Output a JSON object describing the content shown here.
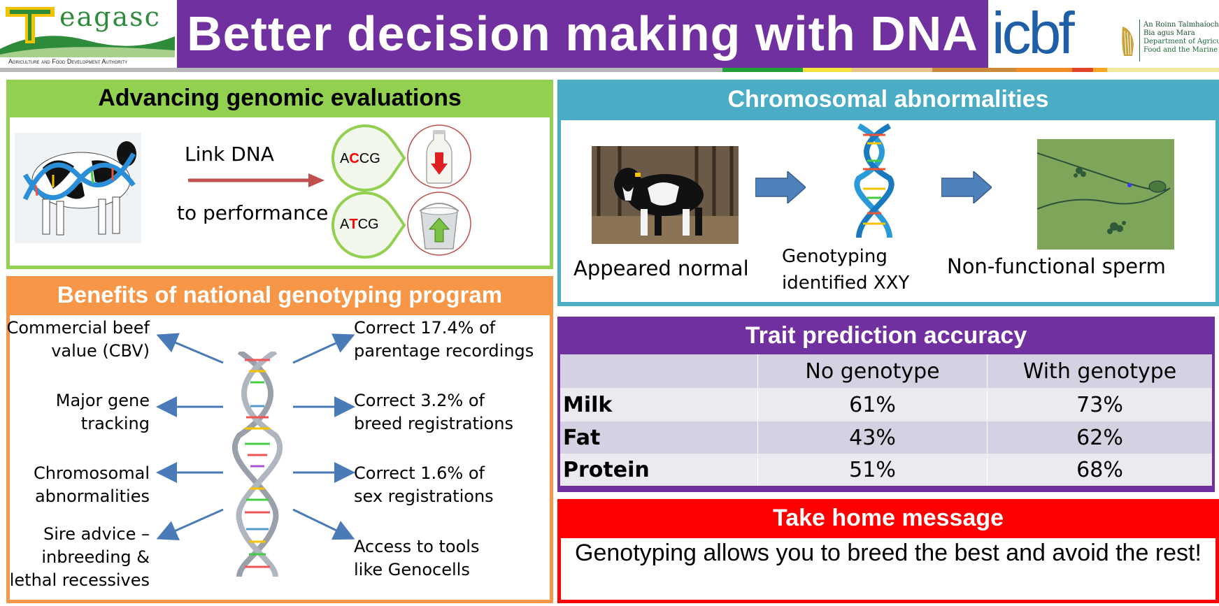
{
  "header": {
    "teagasc_logo": "eagasc",
    "teagasc_tagline": "Agriculture and Food Development Authority",
    "title": "Better decision making with DNA",
    "icbf_logo": "icbf",
    "dept_line1": "An Roinn Talmhaíochta,",
    "dept_line2": "Bia agus Mara",
    "dept_line3": "Department of Agriculture,",
    "dept_line4": "Food and the Marine"
  },
  "genomic": {
    "heading": "Advancing genomic evaluations",
    "link_text": "Link DNA",
    "performance_text": "to performance",
    "seq1": {
      "pre": "A",
      "mid": "C",
      "post": "CG"
    },
    "seq2": {
      "pre": "A",
      "mid": "T",
      "post": "CG"
    }
  },
  "chromosomal": {
    "heading": "Chromosomal abnormalities",
    "step1": "Appeared normal",
    "step2_line1": "Genotyping",
    "step2_line2": "identified XXY",
    "step3": "Non-functional sperm"
  },
  "benefits": {
    "heading": "Benefits of national genotyping program",
    "left": [
      {
        "line1": "Commercial beef",
        "line2": "value (CBV)"
      },
      {
        "line1": "Major gene",
        "line2": "tracking"
      },
      {
        "line1": "Chromosomal",
        "line2": "abnormalities"
      },
      {
        "line1": "Sire advice –",
        "line2": "inbreeding &",
        "line3": "lethal recessives"
      }
    ],
    "right": [
      {
        "line1": "Correct 17.4% of",
        "line2": "parentage recordings"
      },
      {
        "line1": "Correct 3.2% of",
        "line2": "breed registrations"
      },
      {
        "line1": "Correct 1.6% of",
        "line2": "sex registrations"
      },
      {
        "line1": "Access to tools",
        "line2": "like Genocells"
      }
    ]
  },
  "trait": {
    "heading": "Trait prediction accuracy",
    "columns": [
      "",
      "No genotype",
      "With genotype"
    ],
    "rows": [
      {
        "trait": "Milk",
        "no": "61%",
        "with": "73%"
      },
      {
        "trait": "Fat",
        "no": "43%",
        "with": "62%"
      },
      {
        "trait": "Protein",
        "no": "51%",
        "with": "68%"
      }
    ]
  },
  "takehome": {
    "heading": "Take home message",
    "message": "Genotyping allows you to breed the best and avoid the rest!"
  },
  "colors": {
    "purple": "#7030a0",
    "green": "#92d050",
    "teal": "#4bacc6",
    "orange": "#f79646",
    "red": "#ff0000",
    "arrow_blue": "#4a7ab8"
  }
}
